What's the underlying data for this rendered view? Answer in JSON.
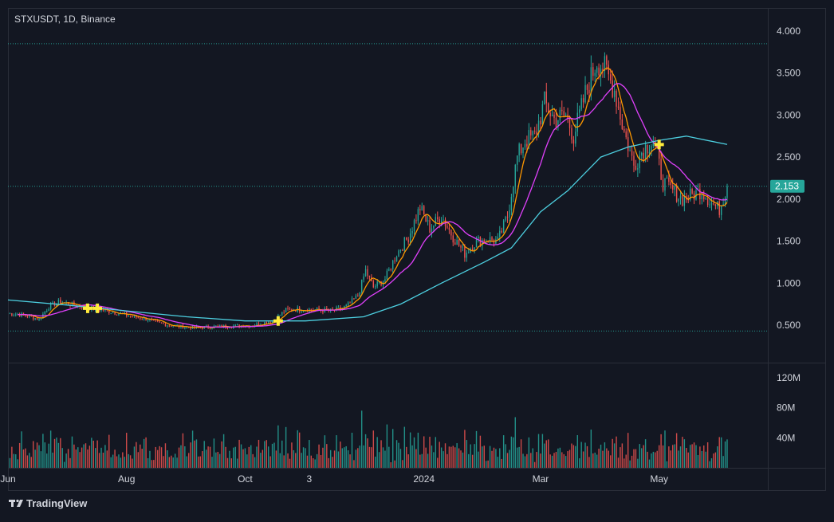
{
  "header": {
    "symbol_label": "STXUSDT, 1D, Binance"
  },
  "brand": {
    "name": "TradingView",
    "logo": "tradingview-logo"
  },
  "colors": {
    "background": "#131722",
    "panel_border": "#2a2e39",
    "axis_text": "#d1d4dc",
    "up": "#26a69a",
    "down": "#ef5350",
    "up_volume": "#26a69a",
    "down_volume": "#ef5350",
    "ma_fast": "#ff9800",
    "ma_mid": "#e040fb",
    "ma_slow": "#4dd0e1",
    "marker": "#ffeb3b",
    "price_badge": "#26a69a",
    "dotted_line": "#26a69a"
  },
  "chart_data": {
    "type": "candlestick",
    "title": "STXUSDT, 1D, Binance",
    "price_axis": {
      "ticks": [
        4.0,
        3.5,
        3.0,
        2.5,
        2.0,
        1.5,
        1.0,
        0.5
      ],
      "tick_labels": [
        "4.000",
        "3.500",
        "3.000",
        "2.500",
        "2.000",
        "1.500",
        "1.000",
        "0.500"
      ],
      "range": [
        0.2,
        4.3
      ]
    },
    "volume_axis": {
      "ticks": [
        120000000,
        80000000,
        40000000
      ],
      "tick_labels": [
        "120M",
        "80M",
        "40M"
      ],
      "range": [
        0,
        135000000
      ]
    },
    "time_axis": {
      "labels": [
        {
          "text": "Jun",
          "date": "2023-06-01"
        },
        {
          "text": "Aug",
          "date": "2023-08-01"
        },
        {
          "text": "Oct",
          "date": "2023-10-01"
        },
        {
          "text": "3",
          "date": "2023-11-03"
        },
        {
          "text": "2024",
          "date": "2024-01-01"
        },
        {
          "text": "Mar",
          "date": "2024-03-01"
        },
        {
          "text": "May",
          "date": "2024-05-01"
        }
      ],
      "range": [
        "2023-06-01",
        "2024-06-05"
      ]
    },
    "last_price": {
      "value": 2.153,
      "label": "2.153"
    },
    "high_line": 3.85,
    "low_line": 0.43,
    "price_path": [
      [
        "2023-06-01",
        0.64
      ],
      [
        "2023-06-10",
        0.62
      ],
      [
        "2023-06-17",
        0.57
      ],
      [
        "2023-06-22",
        0.72
      ],
      [
        "2023-06-28",
        0.78
      ],
      [
        "2023-07-05",
        0.74
      ],
      [
        "2023-07-12",
        0.71
      ],
      [
        "2023-07-20",
        0.68
      ],
      [
        "2023-07-28",
        0.64
      ],
      [
        "2023-08-05",
        0.6
      ],
      [
        "2023-08-12",
        0.57
      ],
      [
        "2023-08-18",
        0.52
      ],
      [
        "2023-08-25",
        0.49
      ],
      [
        "2023-09-05",
        0.47
      ],
      [
        "2023-09-15",
        0.48
      ],
      [
        "2023-09-25",
        0.49
      ],
      [
        "2023-10-05",
        0.5
      ],
      [
        "2023-10-15",
        0.55
      ],
      [
        "2023-10-22",
        0.68
      ],
      [
        "2023-10-30",
        0.69
      ],
      [
        "2023-11-08",
        0.68
      ],
      [
        "2023-11-15",
        0.67
      ],
      [
        "2023-11-22",
        0.72
      ],
      [
        "2023-11-28",
        0.85
      ],
      [
        "2023-12-02",
        1.15
      ],
      [
        "2023-12-06",
        0.95
      ],
      [
        "2023-12-12",
        1.05
      ],
      [
        "2023-12-18",
        1.35
      ],
      [
        "2023-12-24",
        1.55
      ],
      [
        "2023-12-30",
        1.9
      ],
      [
        "2024-01-04",
        1.65
      ],
      [
        "2024-01-10",
        1.8
      ],
      [
        "2024-01-16",
        1.55
      ],
      [
        "2024-01-22",
        1.35
      ],
      [
        "2024-01-28",
        1.5
      ],
      [
        "2024-02-03",
        1.52
      ],
      [
        "2024-02-08",
        1.5
      ],
      [
        "2024-02-13",
        1.8
      ],
      [
        "2024-02-18",
        2.5
      ],
      [
        "2024-02-22",
        2.7
      ],
      [
        "2024-02-27",
        2.75
      ],
      [
        "2024-03-03",
        3.15
      ],
      [
        "2024-03-08",
        2.95
      ],
      [
        "2024-03-14",
        3.0
      ],
      [
        "2024-03-18",
        2.75
      ],
      [
        "2024-03-24",
        3.25
      ],
      [
        "2024-03-30",
        3.65
      ],
      [
        "2024-04-03",
        3.55
      ],
      [
        "2024-04-08",
        3.3
      ],
      [
        "2024-04-13",
        2.8
      ],
      [
        "2024-04-18",
        2.4
      ],
      [
        "2024-04-23",
        2.6
      ],
      [
        "2024-04-28",
        2.7
      ],
      [
        "2024-05-03",
        2.2
      ],
      [
        "2024-05-08",
        2.1
      ],
      [
        "2024-05-13",
        2.0
      ],
      [
        "2024-05-18",
        2.05
      ],
      [
        "2024-05-23",
        2.1
      ],
      [
        "2024-05-28",
        1.95
      ],
      [
        "2024-06-01",
        1.88
      ],
      [
        "2024-06-05",
        2.153
      ]
    ],
    "ma_slow_path": [
      [
        "2023-06-01",
        0.8
      ],
      [
        "2023-07-01",
        0.74
      ],
      [
        "2023-08-01",
        0.67
      ],
      [
        "2023-09-01",
        0.6
      ],
      [
        "2023-10-01",
        0.55
      ],
      [
        "2023-11-01",
        0.55
      ],
      [
        "2023-12-01",
        0.6
      ],
      [
        "2023-12-20",
        0.75
      ],
      [
        "2024-01-10",
        1.0
      ],
      [
        "2024-02-01",
        1.25
      ],
      [
        "2024-02-15",
        1.42
      ],
      [
        "2024-03-01",
        1.85
      ],
      [
        "2024-03-15",
        2.1
      ],
      [
        "2024-04-01",
        2.5
      ],
      [
        "2024-04-15",
        2.62
      ],
      [
        "2024-05-01",
        2.7
      ],
      [
        "2024-05-15",
        2.75
      ],
      [
        "2024-06-05",
        2.65
      ]
    ],
    "markers": [
      {
        "date": "2023-07-12",
        "value": 0.7
      },
      {
        "date": "2023-07-17",
        "value": 0.7
      },
      {
        "date": "2023-10-18",
        "value": 0.55
      },
      {
        "date": "2024-05-01",
        "value": 2.65
      }
    ]
  }
}
